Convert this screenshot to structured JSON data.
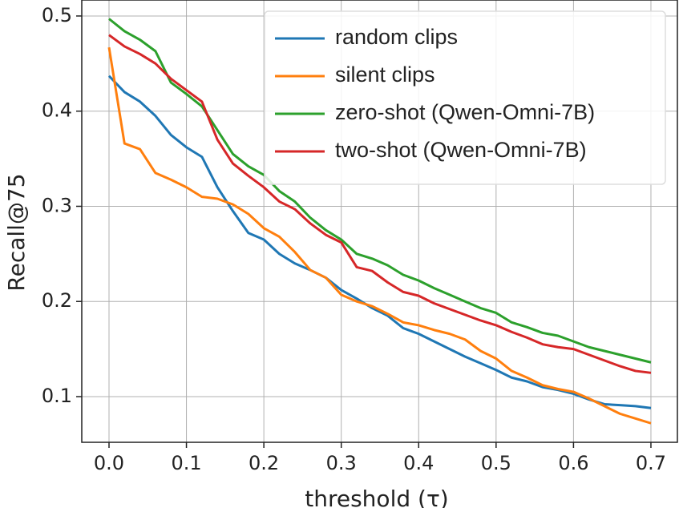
{
  "chart_data": {
    "type": "line",
    "x_label": "threshold (τ)",
    "y_label": "Recall@75",
    "x": [
      0,
      0.02,
      0.04,
      0.06,
      0.08,
      0.1,
      0.12,
      0.14,
      0.16,
      0.18,
      0.2,
      0.22,
      0.24,
      0.26,
      0.28,
      0.3,
      0.32,
      0.34,
      0.36,
      0.38,
      0.4,
      0.42,
      0.44,
      0.46,
      0.48,
      0.5,
      0.52,
      0.54,
      0.56,
      0.58,
      0.6,
      0.62,
      0.64,
      0.66,
      0.68,
      0.7
    ],
    "series": [
      {
        "name": "random clips",
        "color": "#1f77b4",
        "values": [
          0.437,
          0.42,
          0.41,
          0.395,
          0.375,
          0.362,
          0.352,
          0.32,
          0.295,
          0.272,
          0.265,
          0.25,
          0.24,
          0.233,
          0.225,
          0.212,
          0.203,
          0.193,
          0.185,
          0.172,
          0.166,
          0.158,
          0.15,
          0.142,
          0.135,
          0.128,
          0.12,
          0.116,
          0.11,
          0.107,
          0.103,
          0.097,
          0.092,
          0.091,
          0.09,
          0.088
        ]
      },
      {
        "name": "silent clips",
        "color": "#ff7f0e",
        "values": [
          0.467,
          0.366,
          0.36,
          0.335,
          0.328,
          0.32,
          0.31,
          0.308,
          0.302,
          0.292,
          0.277,
          0.268,
          0.252,
          0.233,
          0.225,
          0.207,
          0.2,
          0.195,
          0.187,
          0.178,
          0.175,
          0.17,
          0.166,
          0.16,
          0.148,
          0.14,
          0.127,
          0.12,
          0.112,
          0.108,
          0.105,
          0.098,
          0.09,
          0.082,
          0.077,
          0.072
        ]
      },
      {
        "name": "zero-shot (Qwen-Omni-7B)",
        "color": "#2ca02c",
        "values": [
          0.497,
          0.484,
          0.475,
          0.463,
          0.43,
          0.418,
          0.405,
          0.38,
          0.355,
          0.342,
          0.333,
          0.316,
          0.305,
          0.288,
          0.275,
          0.265,
          0.25,
          0.245,
          0.238,
          0.228,
          0.222,
          0.214,
          0.207,
          0.2,
          0.193,
          0.188,
          0.178,
          0.173,
          0.167,
          0.164,
          0.158,
          0.152,
          0.148,
          0.144,
          0.14,
          0.136
        ]
      },
      {
        "name": "two-shot (Qwen-Omni-7B)",
        "color": "#d62728",
        "values": [
          0.48,
          0.468,
          0.46,
          0.45,
          0.434,
          0.422,
          0.41,
          0.37,
          0.345,
          0.332,
          0.32,
          0.305,
          0.297,
          0.282,
          0.27,
          0.262,
          0.236,
          0.232,
          0.22,
          0.21,
          0.206,
          0.198,
          0.192,
          0.186,
          0.18,
          0.175,
          0.168,
          0.162,
          0.155,
          0.152,
          0.15,
          0.144,
          0.138,
          0.132,
          0.127,
          0.125
        ]
      }
    ],
    "xlim": [
      -0.0352,
      0.7342
    ],
    "ylim": [
      0.052,
      0.5168
    ],
    "xticks": [
      {
        "value": 0,
        "label": "0.0"
      },
      0.1,
      0.2,
      0.3,
      0.4,
      0.5,
      0.6,
      0.7
    ],
    "yticks": [
      0.1,
      0.2,
      0.3,
      0.4,
      0.5
    ],
    "grid": true,
    "legend": "upper right"
  }
}
